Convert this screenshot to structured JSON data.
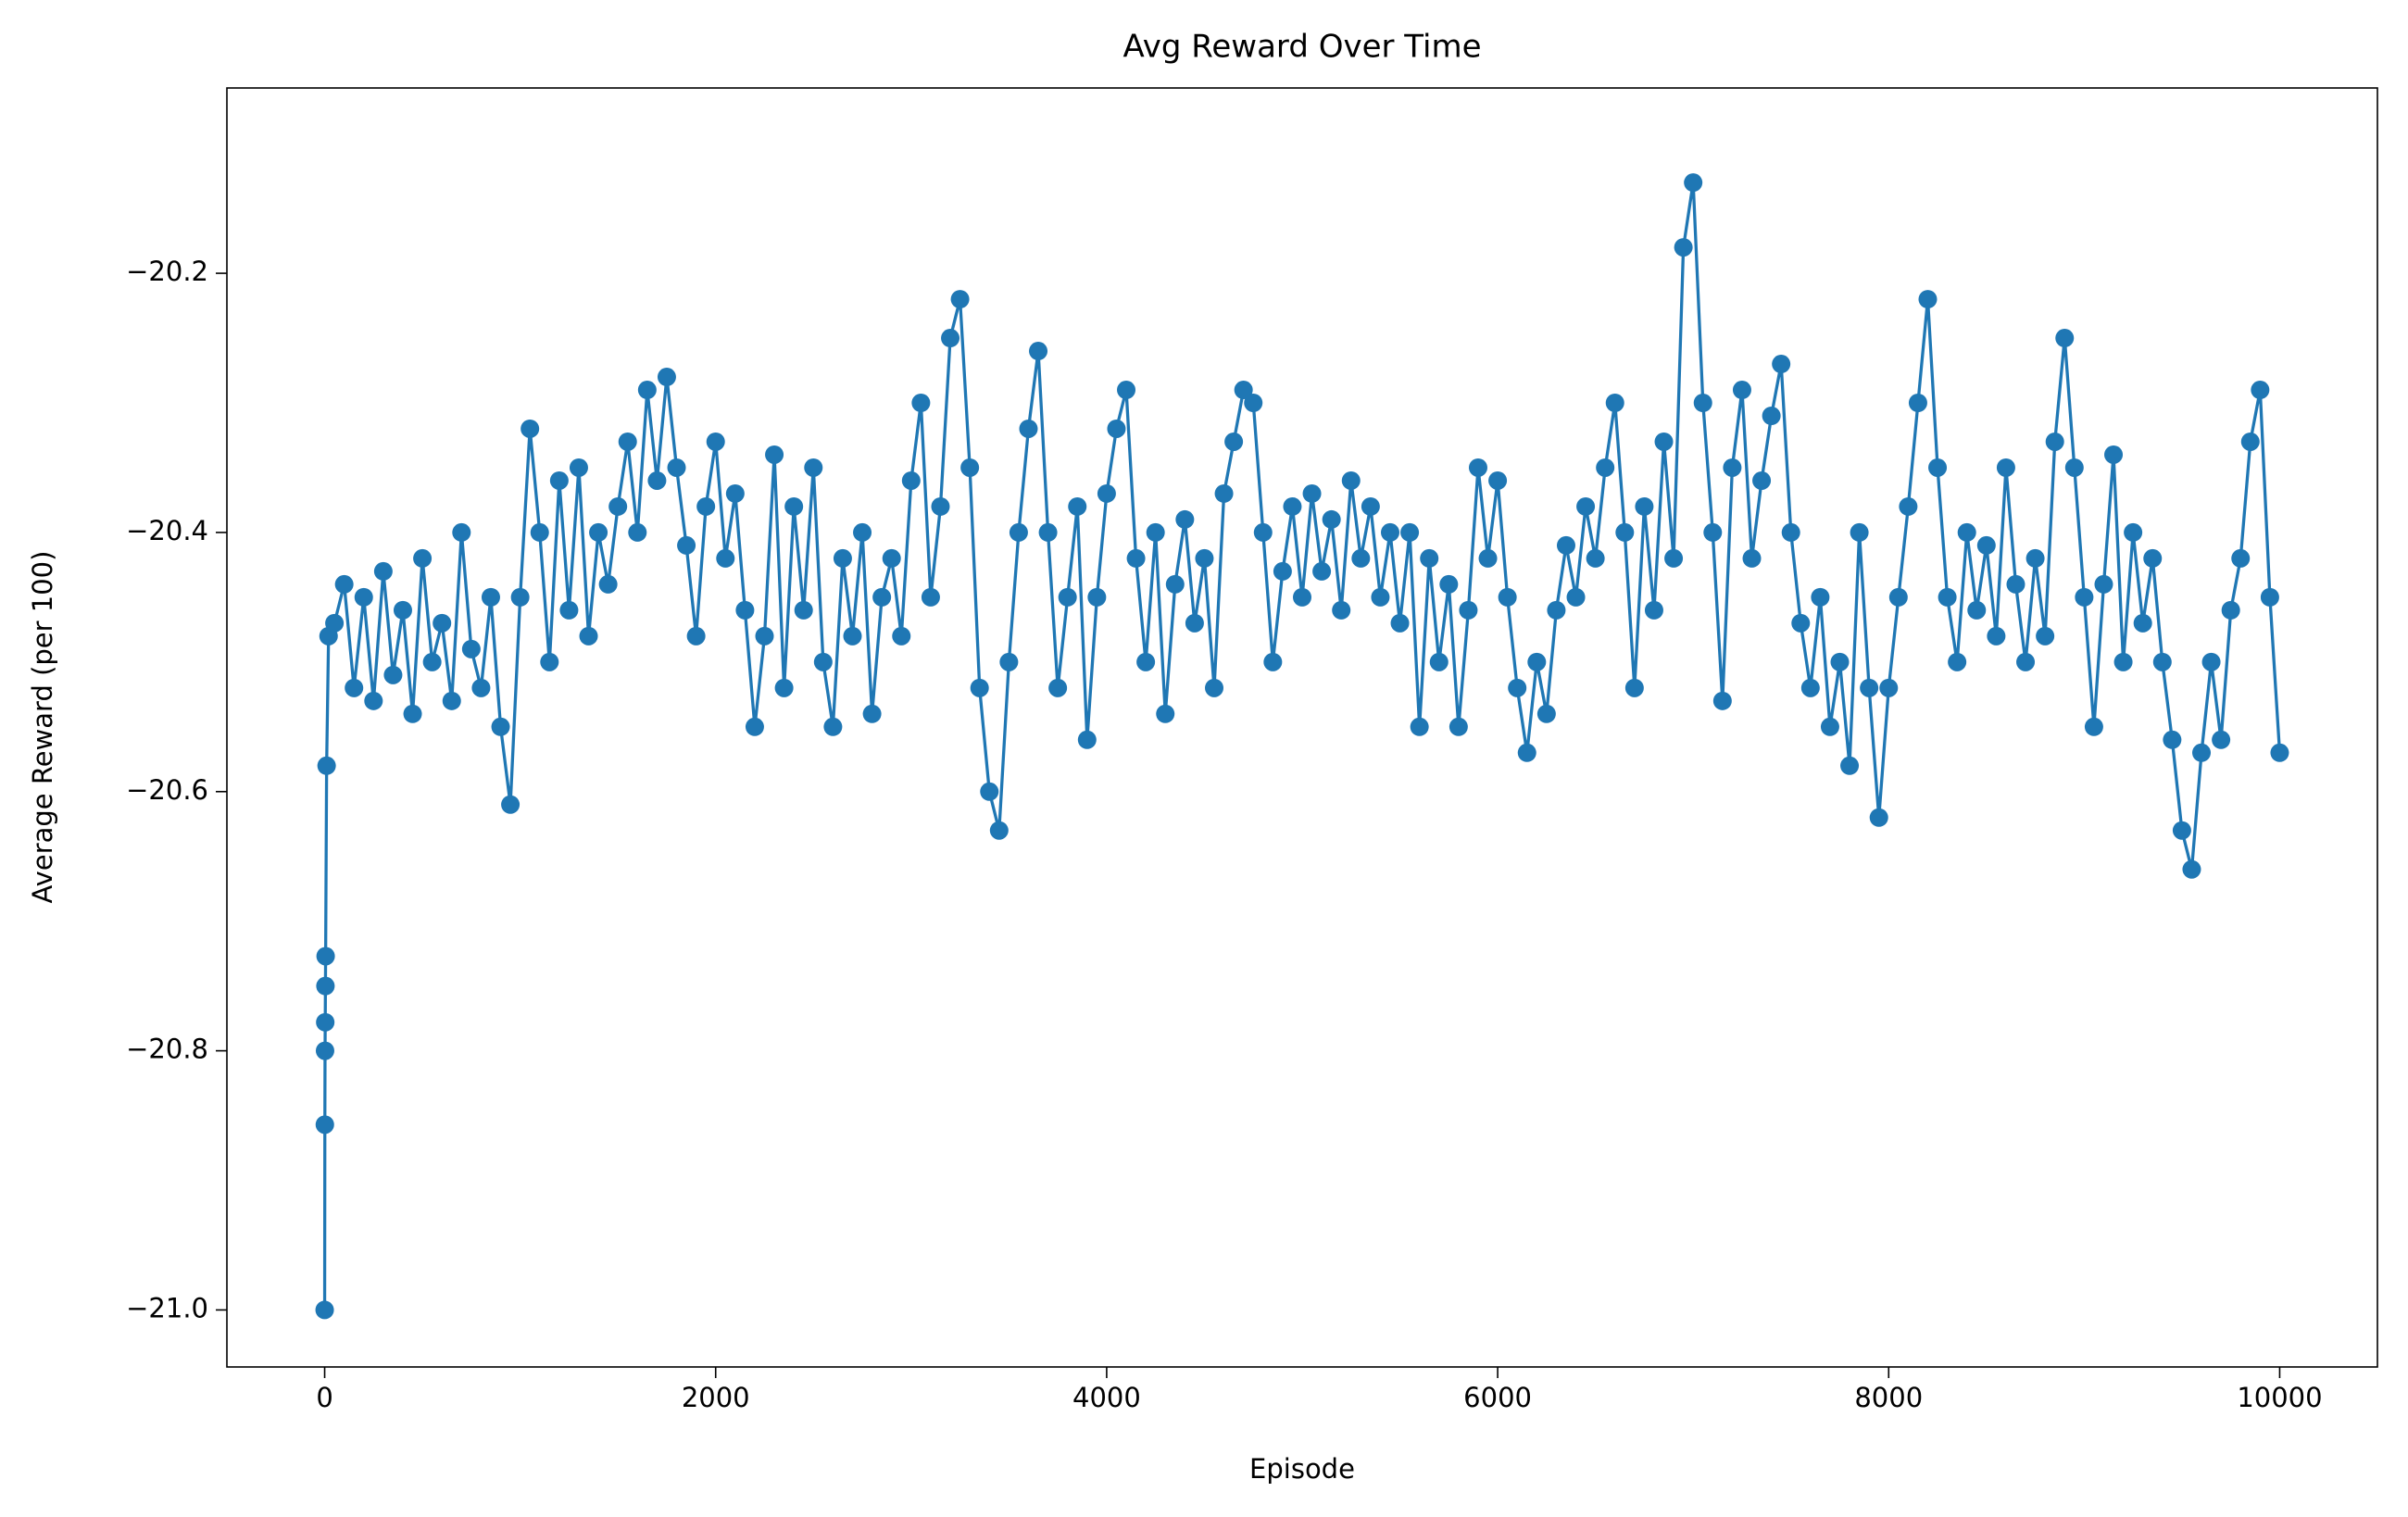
{
  "chart_data": {
    "type": "line",
    "title": "Avg Reward Over Time",
    "xlabel": "Episode",
    "ylabel": "Average Reward (per 100)",
    "x": [
      0,
      1,
      2,
      3,
      4,
      5,
      10,
      20,
      50,
      100,
      150,
      200,
      250,
      300,
      350,
      400,
      450,
      500,
      550,
      600,
      650,
      700,
      750,
      800,
      850,
      900,
      950,
      1000,
      1050,
      1100,
      1150,
      1200,
      1250,
      1300,
      1350,
      1400,
      1450,
      1500,
      1550,
      1600,
      1650,
      1700,
      1750,
      1800,
      1850,
      1900,
      1950,
      2000,
      2050,
      2100,
      2150,
      2200,
      2250,
      2300,
      2350,
      2400,
      2450,
      2500,
      2550,
      2600,
      2650,
      2700,
      2750,
      2800,
      2850,
      2900,
      2950,
      3000,
      3050,
      3100,
      3150,
      3200,
      3250,
      3300,
      3350,
      3400,
      3450,
      3500,
      3550,
      3600,
      3650,
      3700,
      3750,
      3800,
      3850,
      3900,
      3950,
      4000,
      4050,
      4100,
      4150,
      4200,
      4250,
      4300,
      4350,
      4400,
      4450,
      4500,
      4550,
      4600,
      4650,
      4700,
      4750,
      4800,
      4850,
      4900,
      4950,
      5000,
      5050,
      5100,
      5150,
      5200,
      5250,
      5300,
      5350,
      5400,
      5450,
      5500,
      5550,
      5600,
      5650,
      5700,
      5750,
      5800,
      5850,
      5900,
      5950,
      6000,
      6050,
      6100,
      6150,
      6200,
      6250,
      6300,
      6350,
      6400,
      6450,
      6500,
      6550,
      6600,
      6650,
      6700,
      6750,
      6800,
      6850,
      6900,
      6950,
      7000,
      7050,
      7100,
      7150,
      7200,
      7250,
      7300,
      7350,
      7400,
      7450,
      7500,
      7550,
      7600,
      7650,
      7700,
      7750,
      7800,
      7850,
      7900,
      7950,
      8000,
      8050,
      8100,
      8150,
      8200,
      8250,
      8300,
      8350,
      8400,
      8450,
      8500,
      8550,
      8600,
      8650,
      8700,
      8750,
      8800,
      8850,
      8900,
      8950,
      9000,
      9050,
      9100,
      9150,
      9200,
      9250,
      9300,
      9350,
      9400,
      9450,
      9500,
      9550,
      9600,
      9650,
      9700,
      9750,
      9800,
      9850,
      9900,
      9950,
      10000
    ],
    "series": [
      {
        "name": "Avg Reward",
        "color": "#1f77b4",
        "values": [
          -21.0,
          -20.857,
          -20.8,
          -20.778,
          -20.75,
          -20.727,
          -20.58,
          -20.48,
          -20.47,
          -20.44,
          -20.52,
          -20.45,
          -20.53,
          -20.43,
          -20.51,
          -20.46,
          -20.54,
          -20.42,
          -20.5,
          -20.47,
          -20.53,
          -20.4,
          -20.49,
          -20.52,
          -20.45,
          -20.55,
          -20.61,
          -20.45,
          -20.32,
          -20.4,
          -20.5,
          -20.36,
          -20.46,
          -20.35,
          -20.48,
          -20.4,
          -20.44,
          -20.38,
          -20.33,
          -20.4,
          -20.29,
          -20.36,
          -20.28,
          -20.35,
          -20.41,
          -20.48,
          -20.38,
          -20.33,
          -20.42,
          -20.37,
          -20.46,
          -20.55,
          -20.48,
          -20.34,
          -20.52,
          -20.38,
          -20.46,
          -20.35,
          -20.5,
          -20.55,
          -20.42,
          -20.48,
          -20.4,
          -20.54,
          -20.45,
          -20.42,
          -20.48,
          -20.36,
          -20.3,
          -20.45,
          -20.38,
          -20.25,
          -20.22,
          -20.35,
          -20.52,
          -20.6,
          -20.63,
          -20.5,
          -20.4,
          -20.32,
          -20.26,
          -20.4,
          -20.52,
          -20.45,
          -20.38,
          -20.56,
          -20.45,
          -20.37,
          -20.32,
          -20.29,
          -20.42,
          -20.5,
          -20.4,
          -20.54,
          -20.44,
          -20.39,
          -20.47,
          -20.42,
          -20.52,
          -20.37,
          -20.33,
          -20.29,
          -20.3,
          -20.4,
          -20.5,
          -20.43,
          -20.38,
          -20.45,
          -20.37,
          -20.43,
          -20.39,
          -20.46,
          -20.36,
          -20.42,
          -20.38,
          -20.45,
          -20.4,
          -20.47,
          -20.4,
          -20.55,
          -20.42,
          -20.5,
          -20.44,
          -20.55,
          -20.46,
          -20.35,
          -20.42,
          -20.36,
          -20.45,
          -20.52,
          -20.57,
          -20.5,
          -20.54,
          -20.46,
          -20.41,
          -20.45,
          -20.38,
          -20.42,
          -20.35,
          -20.3,
          -20.4,
          -20.52,
          -20.38,
          -20.46,
          -20.33,
          -20.42,
          -20.18,
          -20.13,
          -20.3,
          -20.4,
          -20.53,
          -20.35,
          -20.29,
          -20.42,
          -20.36,
          -20.31,
          -20.27,
          -20.4,
          -20.47,
          -20.52,
          -20.45,
          -20.55,
          -20.5,
          -20.58,
          -20.4,
          -20.52,
          -20.62,
          -20.52,
          -20.45,
          -20.38,
          -20.3,
          -20.22,
          -20.35,
          -20.45,
          -20.5,
          -20.4,
          -20.46,
          -20.41,
          -20.48,
          -20.35,
          -20.44,
          -20.5,
          -20.42,
          -20.48,
          -20.33,
          -20.25,
          -20.35,
          -20.45,
          -20.55,
          -20.44,
          -20.34,
          -20.5,
          -20.4,
          -20.47,
          -20.42,
          -20.5,
          -20.56,
          -20.63,
          -20.66,
          -20.57,
          -20.5,
          -20.56,
          -20.46,
          -20.42,
          -20.33,
          -20.29,
          -20.45,
          -20.57
        ]
      }
    ],
    "xlim": [
      -500,
      10500
    ],
    "xticks": [
      0,
      2000,
      4000,
      6000,
      8000,
      10000
    ],
    "ylim": [
      -21.044,
      -20.057
    ],
    "yticks": [
      {
        "value": -21.0,
        "label": "−21.0"
      },
      {
        "value": -20.8,
        "label": "−20.8"
      },
      {
        "value": -20.6,
        "label": "−20.6"
      },
      {
        "value": -20.4,
        "label": "−20.4"
      },
      {
        "value": -20.2,
        "label": "−20.2"
      }
    ],
    "grid": false,
    "markers": true
  }
}
